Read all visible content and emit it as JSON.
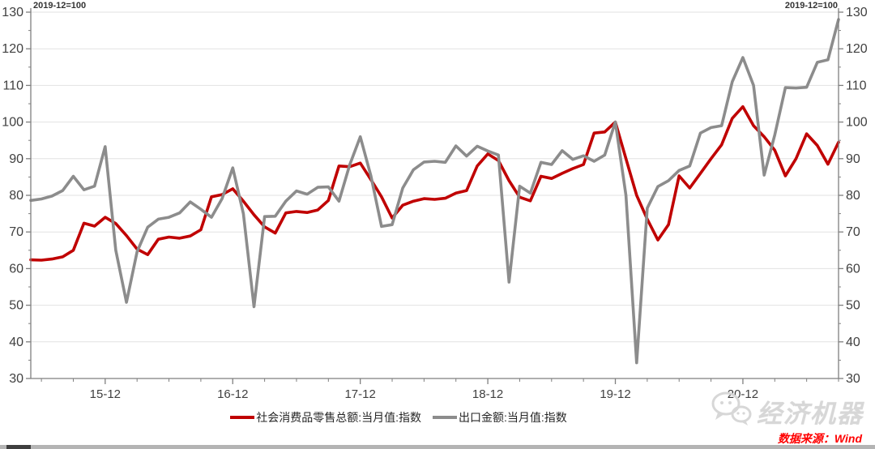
{
  "header": {
    "left_note": "2019-12=100",
    "right_note": "2019-12=100"
  },
  "legend": [
    {
      "label": "社会消费品零售总额:当月值:指数",
      "color": "#c00000"
    },
    {
      "label": "出口金额:当月值:指数",
      "color": "#8c8c8c"
    }
  ],
  "source_note": "数据来源：Wind",
  "watermark": {
    "text": "经济机器",
    "icon": "speech-bubbles-logo"
  },
  "colors": {
    "retail_line": "#c00000",
    "export_line": "#8c8c8c",
    "gridline": "#e2e2e2",
    "axis": "#7f7f7f",
    "tick_text": "#404040"
  },
  "chart_data": {
    "type": "line",
    "title": "",
    "xlabel": "",
    "ylabel": "",
    "ylim": [
      30,
      130
    ],
    "y_ticks": [
      30,
      40,
      50,
      60,
      70,
      80,
      90,
      100,
      110,
      120,
      130
    ],
    "grid": "horizontal",
    "legend_position": "bottom",
    "dual_axis": true,
    "x": [
      "15-05",
      "15-06",
      "15-07",
      "15-08",
      "15-09",
      "15-10",
      "15-11",
      "15-12",
      "16-01",
      "16-02",
      "16-03",
      "16-04",
      "16-05",
      "16-06",
      "16-07",
      "16-08",
      "16-09",
      "16-10",
      "16-11",
      "16-12",
      "17-01",
      "17-02",
      "17-03",
      "17-04",
      "17-05",
      "17-06",
      "17-07",
      "17-08",
      "17-09",
      "17-10",
      "17-11",
      "17-12",
      "18-01",
      "18-02",
      "18-03",
      "18-04",
      "18-05",
      "18-06",
      "18-07",
      "18-08",
      "18-09",
      "18-10",
      "18-11",
      "18-12",
      "19-01",
      "19-02",
      "19-03",
      "19-04",
      "19-05",
      "19-06",
      "19-07",
      "19-08",
      "19-09",
      "19-10",
      "19-11",
      "19-12",
      "20-01",
      "20-02",
      "20-03",
      "20-04",
      "20-05",
      "20-06",
      "20-07",
      "20-08",
      "20-09",
      "20-10",
      "20-11",
      "20-12",
      "21-01",
      "21-02",
      "21-03",
      "21-04",
      "21-05",
      "21-06",
      "21-07",
      "21-08",
      "21-09"
    ],
    "x_tick_labels": [
      "15-12",
      "16-12",
      "17-12",
      "18-12",
      "19-12",
      "20-12"
    ],
    "series": [
      {
        "name": "社会消费品零售总额:当月值:指数",
        "color": "#c00000",
        "values": [
          62.4,
          62.3,
          62.6,
          63.2,
          65.0,
          72.4,
          71.6,
          74.0,
          72.3,
          69.0,
          65.3,
          63.8,
          68.0,
          68.6,
          68.3,
          68.9,
          70.6,
          79.6,
          80.2,
          81.8,
          78.4,
          74.7,
          71.4,
          69.7,
          75.2,
          75.6,
          75.3,
          76.0,
          78.6,
          88.0,
          87.8,
          88.8,
          84.3,
          79.6,
          73.8,
          77.3,
          78.4,
          79.1,
          78.9,
          79.2,
          80.6,
          81.3,
          88.0,
          91.3,
          89.5,
          84.0,
          79.5,
          78.5,
          85.2,
          84.6,
          86.0,
          87.3,
          88.4,
          97.0,
          97.3,
          100.0,
          90.0,
          80.0,
          73.5,
          67.8,
          72.0,
          85.3,
          82.0,
          86.0,
          90.0,
          93.8,
          101.0,
          104.2,
          99.0,
          96.0,
          92.3,
          85.3,
          90.0,
          96.8,
          93.6,
          88.5,
          94.5
        ]
      },
      {
        "name": "出口金额:当月值:指数",
        "color": "#8c8c8c",
        "values": [
          78.6,
          79.0,
          79.8,
          81.3,
          85.2,
          81.5,
          82.5,
          93.3,
          65.0,
          50.8,
          64.6,
          71.3,
          73.5,
          74.0,
          75.2,
          78.2,
          76.2,
          74.0,
          79.1,
          87.5,
          75.0,
          49.6,
          74.2,
          74.3,
          78.4,
          81.2,
          80.3,
          82.2,
          82.3,
          78.4,
          88.3,
          96.0,
          85.3,
          71.5,
          72.0,
          82.0,
          87.0,
          89.1,
          89.3,
          89.0,
          93.5,
          90.7,
          93.4,
          92.1,
          91.0,
          56.3,
          82.5,
          80.6,
          89.0,
          88.4,
          92.2,
          89.8,
          90.8,
          89.3,
          91.0,
          100.0,
          80.0,
          34.3,
          76.5,
          82.4,
          84.0,
          86.8,
          88.0,
          97.0,
          98.5,
          99.0,
          111.0,
          117.6,
          110.0,
          85.5,
          96.5,
          109.4,
          109.3,
          109.5,
          116.3,
          117.0,
          128.0
        ]
      }
    ]
  }
}
